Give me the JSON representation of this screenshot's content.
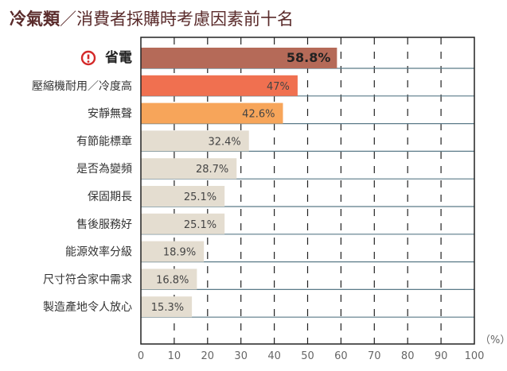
{
  "title": {
    "bold": "冷氣類",
    "slash": "／",
    "rest": "消費者採購時考慮因素前十名"
  },
  "chart_data": {
    "type": "bar",
    "orientation": "horizontal",
    "categories": [
      "省電",
      "壓縮機耐用／冷度高",
      "安靜無聲",
      "有節能標章",
      "是否為變頻",
      "保固期長",
      "售後服務好",
      "能源效率分級",
      "尺寸符合家中需求",
      "製造產地令人放心"
    ],
    "values": [
      58.8,
      47,
      42.6,
      32.4,
      28.7,
      25.1,
      25.1,
      18.9,
      16.8,
      15.3
    ],
    "value_labels": [
      "58.8%",
      "47%",
      "42.6%",
      "32.4%",
      "28.7%",
      "25.1%",
      "25.1%",
      "18.9%",
      "16.8%",
      "15.3%"
    ],
    "bar_colors": [
      "#b56a58",
      "#f07050",
      "#f7a55a",
      "#e4ddd0",
      "#e4ddd0",
      "#e4ddd0",
      "#e4ddd0",
      "#e4ddd0",
      "#e4ddd0",
      "#e4ddd0"
    ],
    "highlight_icon": "exclamation-circle-icon",
    "highlight_color": "#d42a2a",
    "xlim": [
      0,
      100
    ],
    "xticks": [
      "0",
      "10",
      "20",
      "30",
      "40",
      "50",
      "60",
      "70",
      "80",
      "90",
      "100"
    ],
    "unit_label": "（%）",
    "grid": "dashed vertical"
  }
}
